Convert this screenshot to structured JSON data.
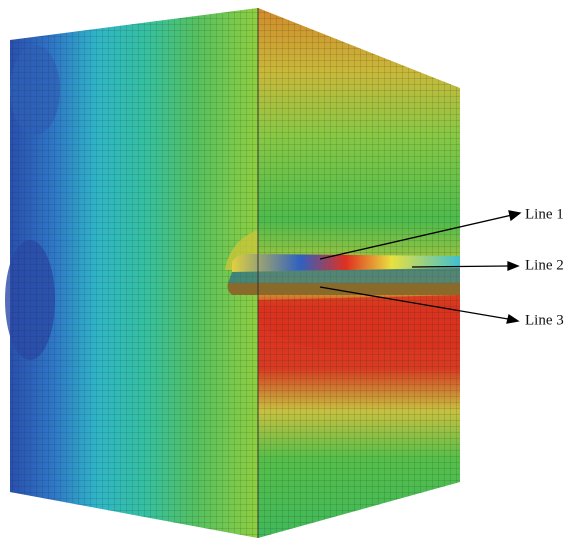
{
  "labels": [
    "Line 1",
    "Line 2",
    "Line 3"
  ]
}
